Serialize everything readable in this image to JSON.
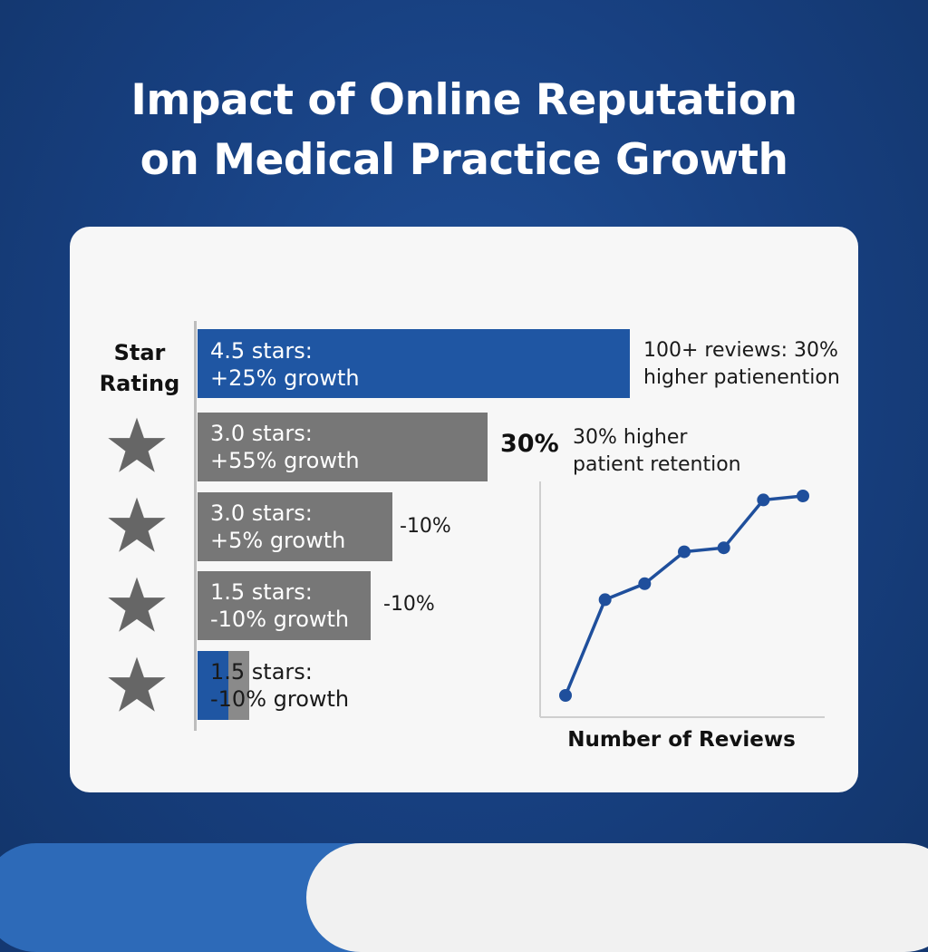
{
  "title_line1": "Impact of Online Reputation",
  "title_line2": "on Medical Practice Growth",
  "colors": {
    "background": "#173f7f",
    "bar_blue": "#1f56a3",
    "bar_gray": "#777777",
    "star_gray": "#666666",
    "line_blue": "#1f4f9c"
  },
  "icons": [
    "star-icon"
  ],
  "chart_data": [
    {
      "type": "bar",
      "orientation": "horizontal",
      "ylabel": "Star Rating",
      "bars": [
        {
          "label": "4.5 stars:\n+25% growth",
          "color": "#1f56a3",
          "side_label": "100+ reviews: 30%\nhigher patienention"
        },
        {
          "label": "3.0 stars:\n+55% growth",
          "color": "#777777",
          "side_label": ""
        },
        {
          "label": "3.0 stars:\n+5% growth",
          "color": "#777777",
          "side_label": "-10%"
        },
        {
          "label": "1.5 stars:\n-10% growth",
          "color": "#777777",
          "side_label": "-10%"
        },
        {
          "label": "1.5 stars:\n-10% growth",
          "color": "#1f56a3",
          "side_label": ""
        }
      ],
      "relative_lengths": [
        1.0,
        0.67,
        0.45,
        0.4,
        0.12
      ]
    },
    {
      "type": "line",
      "xlabel": "Number of Reviews",
      "annotation_big": "30%",
      "annotation": "30% higher\npatient retention",
      "y_values": [
        0.0,
        0.48,
        0.56,
        0.72,
        0.74,
        0.98,
        1.0
      ]
    }
  ]
}
